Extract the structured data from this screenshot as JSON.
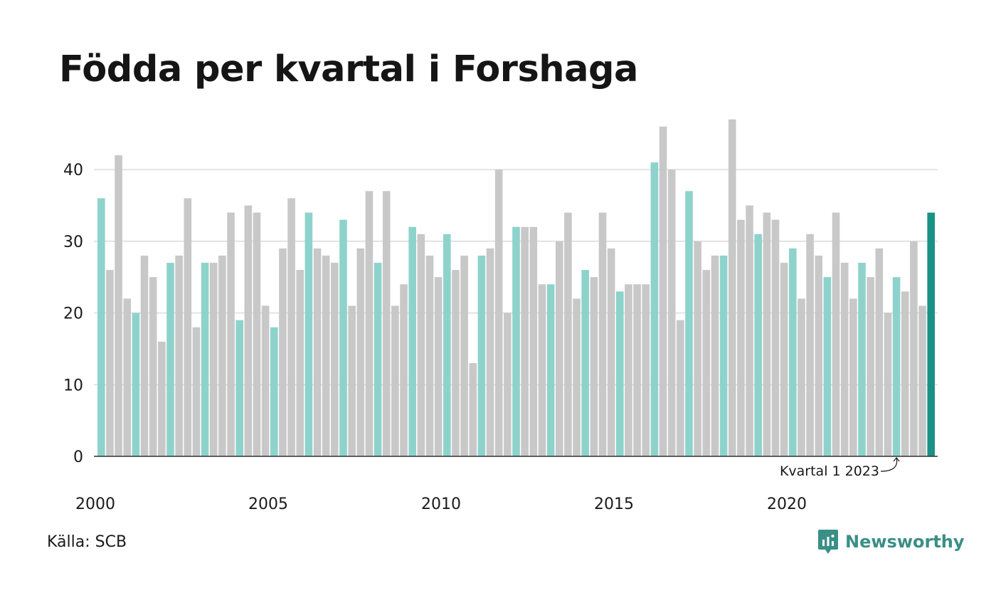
{
  "title": "Födda per kvartal i Forshaga",
  "source": "Källa: SCB",
  "brand": {
    "name": "Newsworthy",
    "icon": "newsworthy-logo-icon",
    "color": "#3a8f86"
  },
  "colors": {
    "highlight_quarter": "#8dd3cc",
    "other_quarter": "#c8c8c8",
    "latest": "#1a9185",
    "grid": "#e3e3e3",
    "axis": "#333333"
  },
  "chart_data": {
    "type": "bar",
    "title": "Födda per kvartal i Forshaga",
    "xlabel": "",
    "ylabel": "",
    "ylim": [
      0,
      47
    ],
    "yticks": [
      0,
      10,
      20,
      30,
      40
    ],
    "xtick_labels": [
      "2000",
      "2005",
      "2010",
      "2015",
      "2020"
    ],
    "grid": true,
    "legend": "none",
    "start_period": "2000 Q1",
    "end_period": "2024 Q1",
    "highlighted_quarter": "Q1",
    "values": [
      36,
      26,
      42,
      22,
      20,
      28,
      25,
      16,
      27,
      28,
      36,
      18,
      27,
      27,
      28,
      34,
      19,
      35,
      34,
      21,
      18,
      29,
      36,
      26,
      34,
      29,
      28,
      27,
      33,
      21,
      29,
      37,
      27,
      37,
      21,
      24,
      32,
      31,
      28,
      25,
      31,
      26,
      28,
      13,
      28,
      29,
      40,
      20,
      32,
      32,
      32,
      24,
      24,
      30,
      34,
      22,
      26,
      25,
      34,
      29,
      23,
      24,
      24,
      24,
      41,
      46,
      40,
      19,
      37,
      30,
      26,
      28,
      28,
      47,
      33,
      35,
      31,
      34,
      33,
      27,
      29,
      22,
      31,
      28,
      25,
      34,
      27,
      22,
      27,
      25,
      29,
      20,
      25,
      23,
      30,
      21,
      34
    ],
    "annotation": {
      "text": "Kvartal 1 2023",
      "target_period": "2023 Q1"
    }
  }
}
